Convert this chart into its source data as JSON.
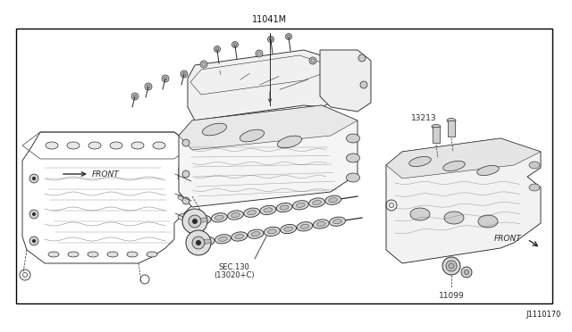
{
  "bg_color": "#ffffff",
  "border_color": "#000000",
  "text_color": "#111111",
  "draw_color": "#2a2a2a",
  "part_label_top": "11041M",
  "part_label_br": "J1110170",
  "part_label_13213": "13213",
  "part_label_11099": "11099",
  "part_label_sec130_1": "SEC.130",
  "part_label_sec130_2": "(13020+C)",
  "label_front_left": "FRONT",
  "label_front_right": "FRONT",
  "fig_width": 6.4,
  "fig_height": 3.72,
  "dpi": 100
}
